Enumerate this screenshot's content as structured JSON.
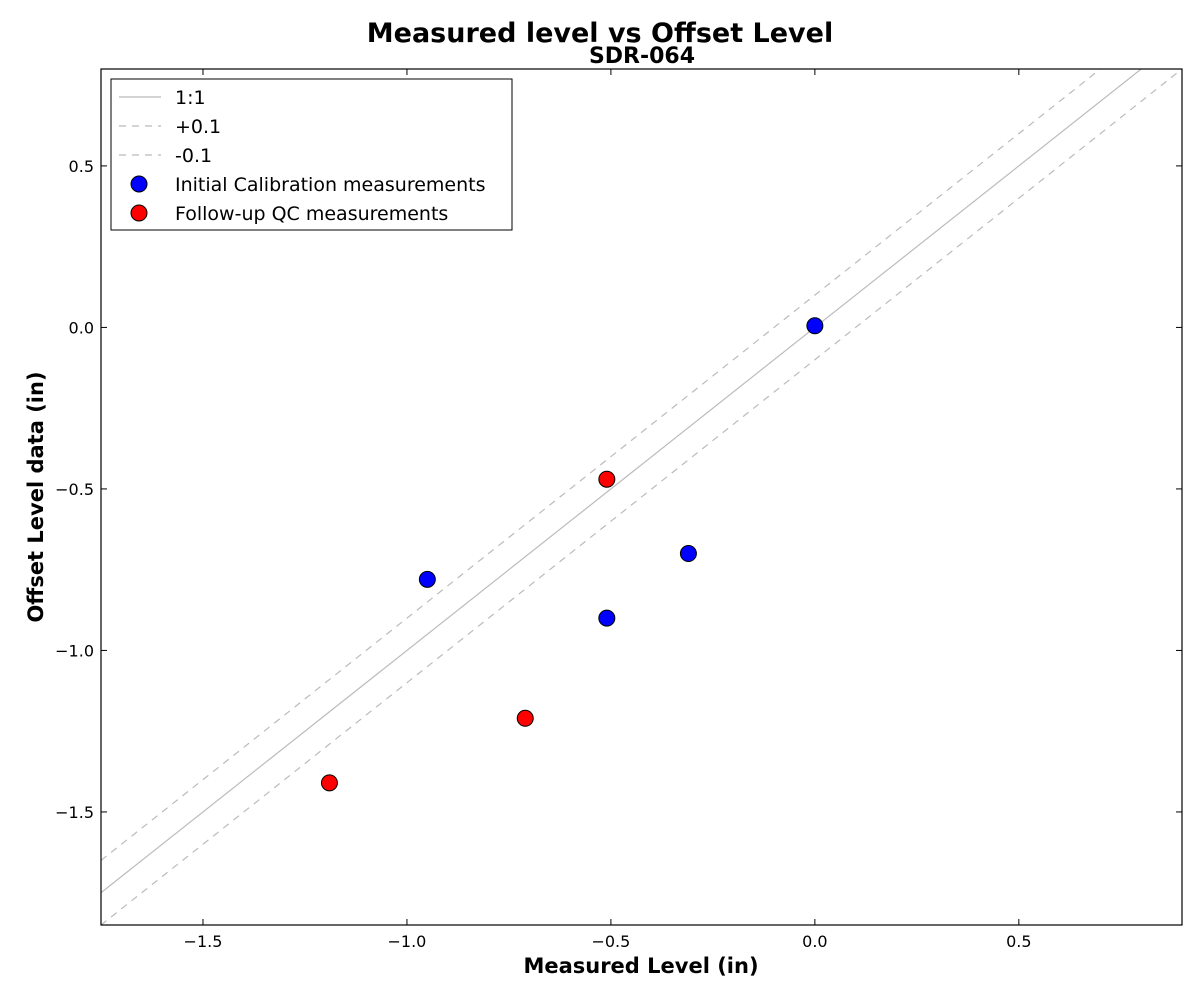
{
  "chart_data": {
    "type": "scatter",
    "title": "Measured level vs Offset Level",
    "subtitle": "SDR-064",
    "xlabel": "Measured Level (in)",
    "ylabel": "Offset Level data (in)",
    "xlim": [
      -1.75,
      0.9
    ],
    "ylim": [
      -1.85,
      0.8
    ],
    "xticks": [
      -1.5,
      -1.0,
      -0.5,
      0.0,
      0.5
    ],
    "xtick_labels": [
      "−1.5",
      "−1.0",
      "−0.5",
      "0.0",
      "0.5"
    ],
    "yticks": [
      0.5,
      0.0,
      -0.5,
      -1.0,
      -1.5
    ],
    "ytick_labels": [
      "0.5",
      "0.0",
      "−0.5",
      "−1.0",
      "−1.5"
    ],
    "grid": false,
    "legend_position": "top-left",
    "reference_lines": [
      {
        "name": "1:1",
        "offset": 0.0,
        "style": "solid",
        "color": "#bbbbbb"
      },
      {
        "name": "+0.1",
        "offset": 0.1,
        "style": "dashed",
        "color": "#bbbbbb"
      },
      {
        "name": "-0.1",
        "offset": -0.1,
        "style": "dashed",
        "color": "#bbbbbb"
      }
    ],
    "series": [
      {
        "name": "Initial Calibration measurements",
        "color": "#0000ff",
        "points": [
          {
            "x": 0.0,
            "y": 0.005
          },
          {
            "x": -0.31,
            "y": -0.7
          },
          {
            "x": -0.51,
            "y": -0.9
          },
          {
            "x": -0.95,
            "y": -0.78
          }
        ]
      },
      {
        "name": "Follow-up QC measurements",
        "color": "#ff0000",
        "points": [
          {
            "x": -0.51,
            "y": -0.47
          },
          {
            "x": -0.71,
            "y": -1.21
          },
          {
            "x": -1.19,
            "y": -1.41
          }
        ]
      }
    ]
  }
}
